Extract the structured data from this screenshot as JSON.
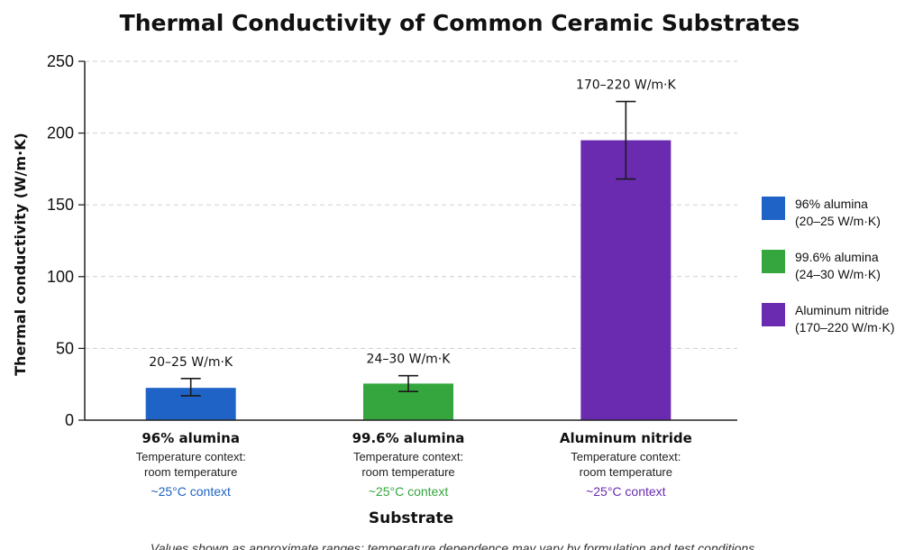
{
  "chart_data": {
    "type": "bar",
    "title": "Thermal Conductivity of Common Ceramic Substrates",
    "xlabel": "Substrate",
    "ylabel": "Thermal conductivity (W/m·K)",
    "ylim": [
      0,
      250
    ],
    "yticks": [
      "0",
      "50",
      "100",
      "150",
      "200",
      "250"
    ],
    "grid": "horizontal dashed",
    "legend_position": "right",
    "categories": [
      "96% alumina",
      "99.6% alumina",
      "Aluminum nitride"
    ],
    "values": [
      22.5,
      25.5,
      195
    ],
    "error_low": [
      17,
      20,
      168
    ],
    "error_high": [
      29,
      31,
      222
    ],
    "data_labels": [
      "20–25 W/m·K",
      "24–30 W/m·K",
      "170–220 W/m·K"
    ],
    "colors": [
      "#1f63c6",
      "#35a63e",
      "#6a2bb0"
    ],
    "sub_labels": [
      [
        "Temperature context:",
        "room temperature"
      ],
      [
        "Temperature context:",
        "room temperature"
      ],
      [
        "Temperature context:",
        "room temperature"
      ]
    ],
    "context_labels": [
      "~25°C context",
      "~25°C context",
      "~25°C context"
    ],
    "legend": [
      [
        "96% alumina",
        "(20–25 W/m·K)"
      ],
      [
        "99.6% alumina",
        "(24–30 W/m·K)"
      ],
      [
        "Aluminum nitride",
        "(170–220 W/m·K)"
      ]
    ],
    "footnote": "Values shown as approximate ranges; temperature dependence may vary by formulation and test conditions."
  }
}
